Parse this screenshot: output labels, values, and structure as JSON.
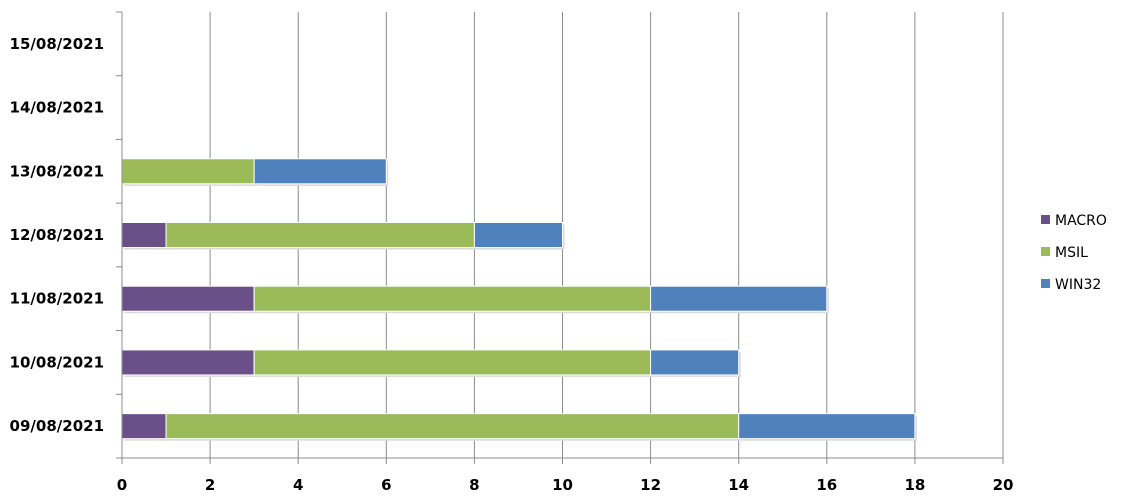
{
  "chart_data": {
    "type": "bar",
    "orientation": "horizontal",
    "stacked": true,
    "categories": [
      "09/08/2021",
      "10/08/2021",
      "11/08/2021",
      "12/08/2021",
      "13/08/2021",
      "14/08/2021",
      "15/08/2021"
    ],
    "series": [
      {
        "name": "MACRO",
        "color": "#6a5089",
        "values": [
          1,
          3,
          3,
          1,
          0,
          0,
          0
        ]
      },
      {
        "name": "MSIL",
        "color": "#9bbb59",
        "values": [
          13,
          9,
          9,
          7,
          3,
          0,
          0
        ]
      },
      {
        "name": "WIN32",
        "color": "#4f81bd",
        "values": [
          4,
          2,
          4,
          2,
          3,
          0,
          0
        ]
      }
    ],
    "xlim": [
      0,
      20
    ],
    "xticks": [
      "0",
      "2",
      "4",
      "6",
      "8",
      "10",
      "12",
      "14",
      "16",
      "18",
      "20"
    ],
    "grid": "vertical",
    "legend_position": "right",
    "title": "",
    "xlabel": "",
    "ylabel": ""
  }
}
